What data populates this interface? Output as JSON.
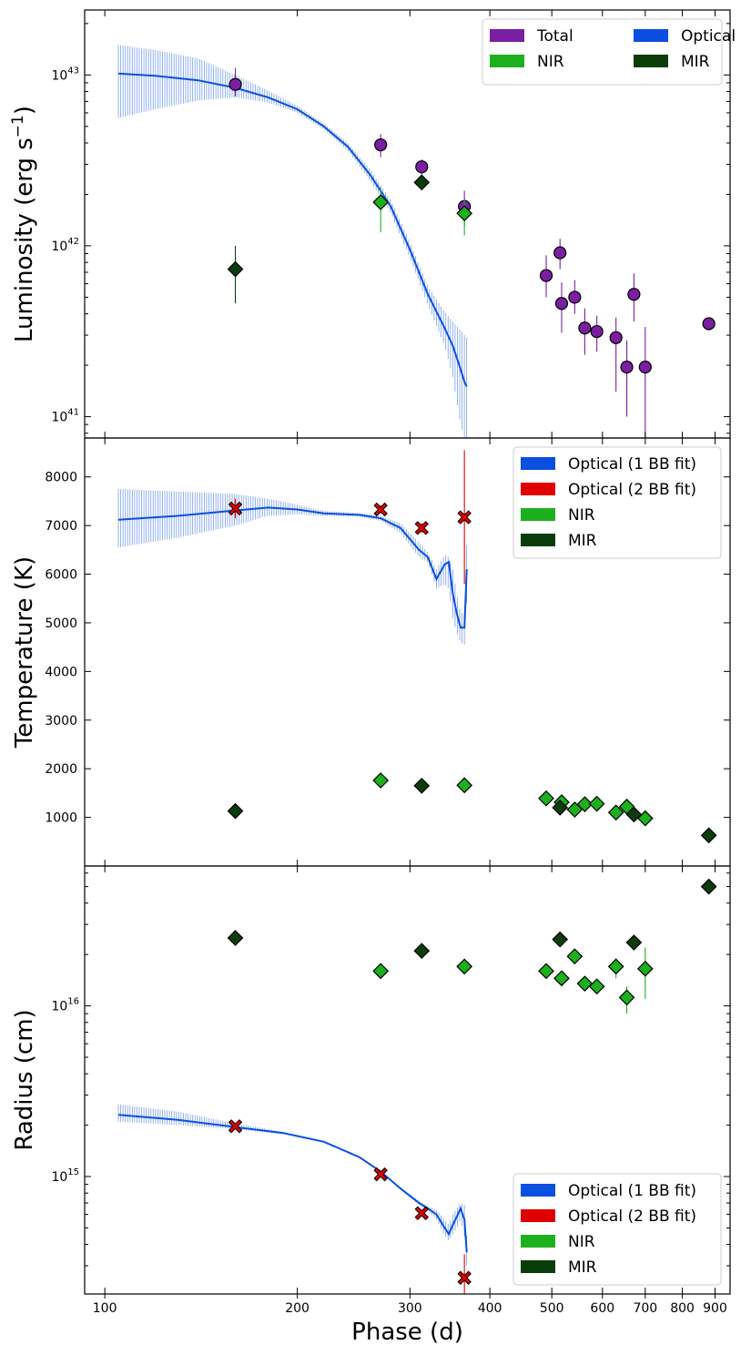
{
  "chart_data": [
    {
      "type": "scatter",
      "panel": "luminosity",
      "ylabel": "Luminosity (erg s$^{-1}$)",
      "ylabel_main": "Luminosity (erg s",
      "ylabel_sup": "−1",
      "ylabel_close": ")",
      "yscale": "log",
      "ylim": [
        7.5e+40,
        2.4e+43
      ],
      "yticks": [
        {
          "value": 1e+41,
          "base": "10",
          "exp": "41"
        },
        {
          "value": 1e+42,
          "base": "10",
          "exp": "42"
        },
        {
          "value": 1e+43,
          "base": "10",
          "exp": "43"
        }
      ],
      "legend": {
        "position": "top-right",
        "columns": 2,
        "entries": [
          {
            "label": "Total",
            "color": "#7b1fa2"
          },
          {
            "label": "Optical",
            "color": "#0a4fe0"
          },
          {
            "label": "NIR",
            "color": "#1db01d"
          },
          {
            "label": "MIR",
            "color": "#0b3d0b"
          }
        ]
      },
      "series": [
        {
          "name": "Optical",
          "kind": "band",
          "color": "#0a4fe0",
          "x": [
            105,
            120,
            140,
            160,
            180,
            200,
            220,
            240,
            260,
            280,
            300,
            320,
            340,
            350,
            360,
            365,
            368
          ],
          "y": [
            1.02e+43,
            9.9e+42,
            9.3e+42,
            8.4e+42,
            7.4e+42,
            6.3e+42,
            5e+42,
            3.8e+42,
            2.6e+42,
            1.7e+42,
            9.5e+41,
            5.2e+41,
            3.3e+41,
            2.6e+41,
            1.9e+41,
            1.6e+41,
            1.5e+41
          ],
          "lo": [
            5.6e+42,
            6.3e+42,
            7.1e+42,
            7.4e+42,
            6.9e+42,
            6e+42,
            4.8e+42,
            3.6e+42,
            2.4e+42,
            1.55e+42,
            8.5e+41,
            4.5e+41,
            2.6e+41,
            1.7e+41,
            9e+40,
            7.5e+40,
            7.5e+40
          ],
          "hi": [
            1.5e+43,
            1.4e+43,
            1.25e+43,
            1e+43,
            8.1e+42,
            6.6e+42,
            5.2e+42,
            4e+42,
            2.8e+42,
            1.85e+42,
            1.05e+42,
            5.8e+41,
            4.1e+41,
            3.6e+41,
            3.2e+41,
            3e+41,
            2.9e+41
          ]
        },
        {
          "name": "Total",
          "kind": "points",
          "color": "#7b1fa2",
          "marker": "circle",
          "x": [
            160,
            270,
            313,
            365,
            490,
            515,
            518,
            543,
            563,
            588,
            630,
            655,
            672,
            700,
            880
          ],
          "y": [
            8.8e+42,
            3.9e+42,
            2.9e+42,
            1.7e+42,
            6.7e+41,
            9.1e+41,
            4.6e+41,
            5e+41,
            3.3e+41,
            3.15e+41,
            2.9e+41,
            1.95e+41,
            5.2e+41,
            1.95e+41,
            3.5e+41
          ],
          "lo": [
            7.5e+42,
            3.3e+42,
            2.6e+42,
            1.3e+42,
            5e+41,
            7.3e+41,
            3.1e+41,
            4e+41,
            2.3e+41,
            2.4e+41,
            1.4e+41,
            1e+41,
            3.6e+41,
            5e+40,
            3.2e+41
          ],
          "hi": [
            1.1e+43,
            4.5e+42,
            3.2e+42,
            2.1e+42,
            8.8e+41,
            1.1e+42,
            6.1e+41,
            6.3e+41,
            4.3e+41,
            3.9e+41,
            3.8e+41,
            2.8e+41,
            6.9e+41,
            3.35e+41,
            3.8e+41
          ]
        },
        {
          "name": "NIR",
          "kind": "points",
          "color": "#1db01d",
          "marker": "diamond",
          "x": [
            270,
            365
          ],
          "y": [
            1.8e+42,
            1.55e+42
          ],
          "lo": [
            1.2e+42,
            1.15e+42
          ],
          "hi": [
            2.2e+42,
            1.85e+42
          ]
        },
        {
          "name": "MIR",
          "kind": "points",
          "color": "#0b3d0b",
          "marker": "diamond",
          "x": [
            160,
            313
          ],
          "y": [
            7.3e+41,
            2.35e+42
          ],
          "lo": [
            4.6e+41,
            2.2e+42
          ],
          "hi": [
            1e+42,
            2.5e+42
          ]
        }
      ]
    },
    {
      "type": "scatter",
      "panel": "temperature",
      "ylabel": "Temperature (K)",
      "yscale": "linear",
      "ylim": [
        0,
        8800
      ],
      "yticks": [
        {
          "value": 1000,
          "label": "1000"
        },
        {
          "value": 2000,
          "label": "2000"
        },
        {
          "value": 3000,
          "label": "3000"
        },
        {
          "value": 4000,
          "label": "4000"
        },
        {
          "value": 5000,
          "label": "5000"
        },
        {
          "value": 6000,
          "label": "6000"
        },
        {
          "value": 7000,
          "label": "7000"
        },
        {
          "value": 8000,
          "label": "8000"
        }
      ],
      "legend": {
        "position": "top-right",
        "columns": 1,
        "entries": [
          {
            "label": "Optical (1 BB fit)",
            "color": "#0a4fe0"
          },
          {
            "label": "Optical (2 BB fit)",
            "color": "#e00000"
          },
          {
            "label": "NIR",
            "color": "#1db01d"
          },
          {
            "label": "MIR",
            "color": "#0b3d0b"
          }
        ]
      },
      "series": [
        {
          "name": "Optical (1 BB fit)",
          "kind": "band",
          "color": "#0a4fe0",
          "x": [
            105,
            130,
            160,
            180,
            200,
            220,
            250,
            270,
            290,
            310,
            320,
            330,
            340,
            345,
            350,
            355,
            360,
            365,
            368
          ],
          "y": [
            7120,
            7200,
            7310,
            7370,
            7330,
            7250,
            7220,
            7150,
            6950,
            6500,
            6350,
            5900,
            6200,
            6250,
            5600,
            5200,
            4900,
            4900,
            6100
          ],
          "lo": [
            6550,
            6750,
            7000,
            7200,
            7230,
            7200,
            7180,
            7100,
            6850,
            6350,
            6250,
            5700,
            5800,
            5700,
            5100,
            4800,
            4600,
            4550,
            5400
          ],
          "hi": [
            7750,
            7700,
            7650,
            7550,
            7430,
            7300,
            7260,
            7200,
            7050,
            6650,
            6450,
            6100,
            6400,
            6350,
            6100,
            5600,
            5200,
            5200,
            6600
          ]
        },
        {
          "name": "Optical (2 BB fit)",
          "kind": "points",
          "color": "#e00000",
          "marker": "x",
          "x": [
            160,
            270,
            313,
            365
          ],
          "y": [
            7350,
            7330,
            6950,
            7170
          ],
          "lo": [
            7150,
            7250,
            6850,
            5800
          ],
          "hi": [
            7550,
            7410,
            7050,
            8550
          ]
        },
        {
          "name": "NIR",
          "kind": "points",
          "color": "#1db01d",
          "marker": "diamond",
          "x": [
            270,
            365,
            490,
            518,
            543,
            563,
            588,
            630,
            655,
            700
          ],
          "y": [
            1760,
            1660,
            1390,
            1310,
            1160,
            1270,
            1280,
            1100,
            1220,
            980
          ],
          "lo": [
            1700,
            1600,
            1350,
            1260,
            1110,
            1220,
            1230,
            1050,
            1170,
            930
          ],
          "hi": [
            1820,
            1720,
            1430,
            1360,
            1210,
            1320,
            1330,
            1150,
            1270,
            1030
          ]
        },
        {
          "name": "MIR",
          "kind": "points",
          "color": "#0b3d0b",
          "marker": "diamond",
          "x": [
            160,
            313,
            515,
            672,
            880
          ],
          "y": [
            1130,
            1650,
            1200,
            1060,
            630
          ],
          "lo": [
            1100,
            1620,
            1170,
            1030,
            600
          ],
          "hi": [
            1160,
            1680,
            1230,
            1090,
            660
          ]
        }
      ]
    },
    {
      "type": "scatter",
      "panel": "radius",
      "ylabel": "Radius (cm)",
      "xlabel": "Phase (d)",
      "yscale": "log",
      "ylim": [
        205000000000000.0,
        6.6e+16
      ],
      "yticks": [
        {
          "value": 1000000000000000.0,
          "base": "10",
          "exp": "15"
        },
        {
          "value": 1e+16,
          "base": "10",
          "exp": "16"
        }
      ],
      "xscale": "log",
      "xlim": [
        93,
        950
      ],
      "xticks": [
        {
          "value": 100,
          "label": "100"
        },
        {
          "value": 200,
          "label": "200"
        },
        {
          "value": 300,
          "label": "300"
        },
        {
          "value": 400,
          "label": "400"
        },
        {
          "value": 500,
          "label": "500"
        },
        {
          "value": 600,
          "label": "600"
        },
        {
          "value": 700,
          "label": "700"
        },
        {
          "value": 800,
          "label": "800"
        },
        {
          "value": 900,
          "label": "900"
        }
      ],
      "legend": {
        "position": "bottom-right",
        "columns": 1,
        "entries": [
          {
            "label": "Optical (1 BB fit)",
            "color": "#0a4fe0"
          },
          {
            "label": "Optical (2 BB fit)",
            "color": "#e00000"
          },
          {
            "label": "NIR",
            "color": "#1db01d"
          },
          {
            "label": "MIR",
            "color": "#0b3d0b"
          }
        ]
      },
      "series": [
        {
          "name": "Optical (1 BB fit)",
          "kind": "band",
          "color": "#0a4fe0",
          "x": [
            105,
            130,
            160,
            190,
            220,
            250,
            270,
            290,
            310,
            320,
            330,
            340,
            345,
            350,
            355,
            360,
            365,
            368
          ],
          "y": [
            2300000000000000.0,
            2150000000000000.0,
            1950000000000000.0,
            1800000000000000.0,
            1600000000000000.0,
            1300000000000000.0,
            1070000000000000.0,
            850000000000000.0,
            700000000000000.0,
            650000000000000.0,
            600000000000000.0,
            500000000000000.0,
            460000000000000.0,
            520000000000000.0,
            580000000000000.0,
            650000000000000.0,
            560000000000000.0,
            360000000000000.0
          ],
          "lo": [
            2100000000000000.0,
            2000000000000000.0,
            1900000000000000.0,
            1770000000000000.0,
            1580000000000000.0,
            1290000000000000.0,
            1060000000000000.0,
            840000000000000.0,
            680000000000000.0,
            630000000000000.0,
            560000000000000.0,
            450000000000000.0,
            420000000000000.0,
            460000000000000.0,
            500000000000000.0,
            560000000000000.0,
            450000000000000.0,
            300000000000000.0
          ],
          "hi": [
            2650000000000000.0,
            2400000000000000.0,
            2050000000000000.0,
            1830000000000000.0,
            1620000000000000.0,
            1310000000000000.0,
            1080000000000000.0,
            860000000000000.0,
            720000000000000.0,
            670000000000000.0,
            640000000000000.0,
            560000000000000.0,
            520000000000000.0,
            600000000000000.0,
            650000000000000.0,
            700000000000000.0,
            680000000000000.0,
            450000000000000.0
          ]
        },
        {
          "name": "Optical (2 BB fit)",
          "kind": "points",
          "color": "#e00000",
          "marker": "x",
          "x": [
            160,
            270,
            313,
            365
          ],
          "y": [
            1970000000000000.0,
            1030000000000000.0,
            610000000000000.0,
            255000000000000.0
          ],
          "lo": [
            1900000000000000.0,
            1000000000000000.0,
            590000000000000.0,
            190000000000000.0
          ],
          "hi": [
            2050000000000000.0,
            1060000000000000.0,
            630000000000000.0,
            350000000000000.0
          ]
        },
        {
          "name": "NIR",
          "kind": "points",
          "color": "#1db01d",
          "marker": "diamond",
          "x": [
            270,
            365,
            490,
            518,
            543,
            563,
            588,
            630,
            655,
            700
          ],
          "y": [
            1.6e+16,
            1.7e+16,
            1.6e+16,
            1.45e+16,
            1.95e+16,
            1.35e+16,
            1.3e+16,
            1.7e+16,
            1.12e+16,
            1.65e+16
          ],
          "lo": [
            1.55e+16,
            1.65e+16,
            1.5e+16,
            1.35e+16,
            1.85e+16,
            1.28e+16,
            1.23e+16,
            1.45e+16,
            9000000000000000.0,
            1.1e+16
          ],
          "hi": [
            1.65e+16,
            1.75e+16,
            1.7e+16,
            1.55e+16,
            2.05e+16,
            1.42e+16,
            1.37e+16,
            1.9e+16,
            1.3e+16,
            2.2e+16
          ]
        },
        {
          "name": "MIR",
          "kind": "points",
          "color": "#0b3d0b",
          "marker": "diamond",
          "x": [
            160,
            313,
            515,
            672,
            880
          ],
          "y": [
            2.5e+16,
            2.1e+16,
            2.45e+16,
            2.35e+16,
            5e+16
          ],
          "lo": [
            2.45e+16,
            2.05e+16,
            2.4e+16,
            2.3e+16,
            4.9e+16
          ],
          "hi": [
            2.55e+16,
            2.15e+16,
            2.5e+16,
            2.4e+16,
            5.1e+16
          ]
        }
      ]
    }
  ]
}
